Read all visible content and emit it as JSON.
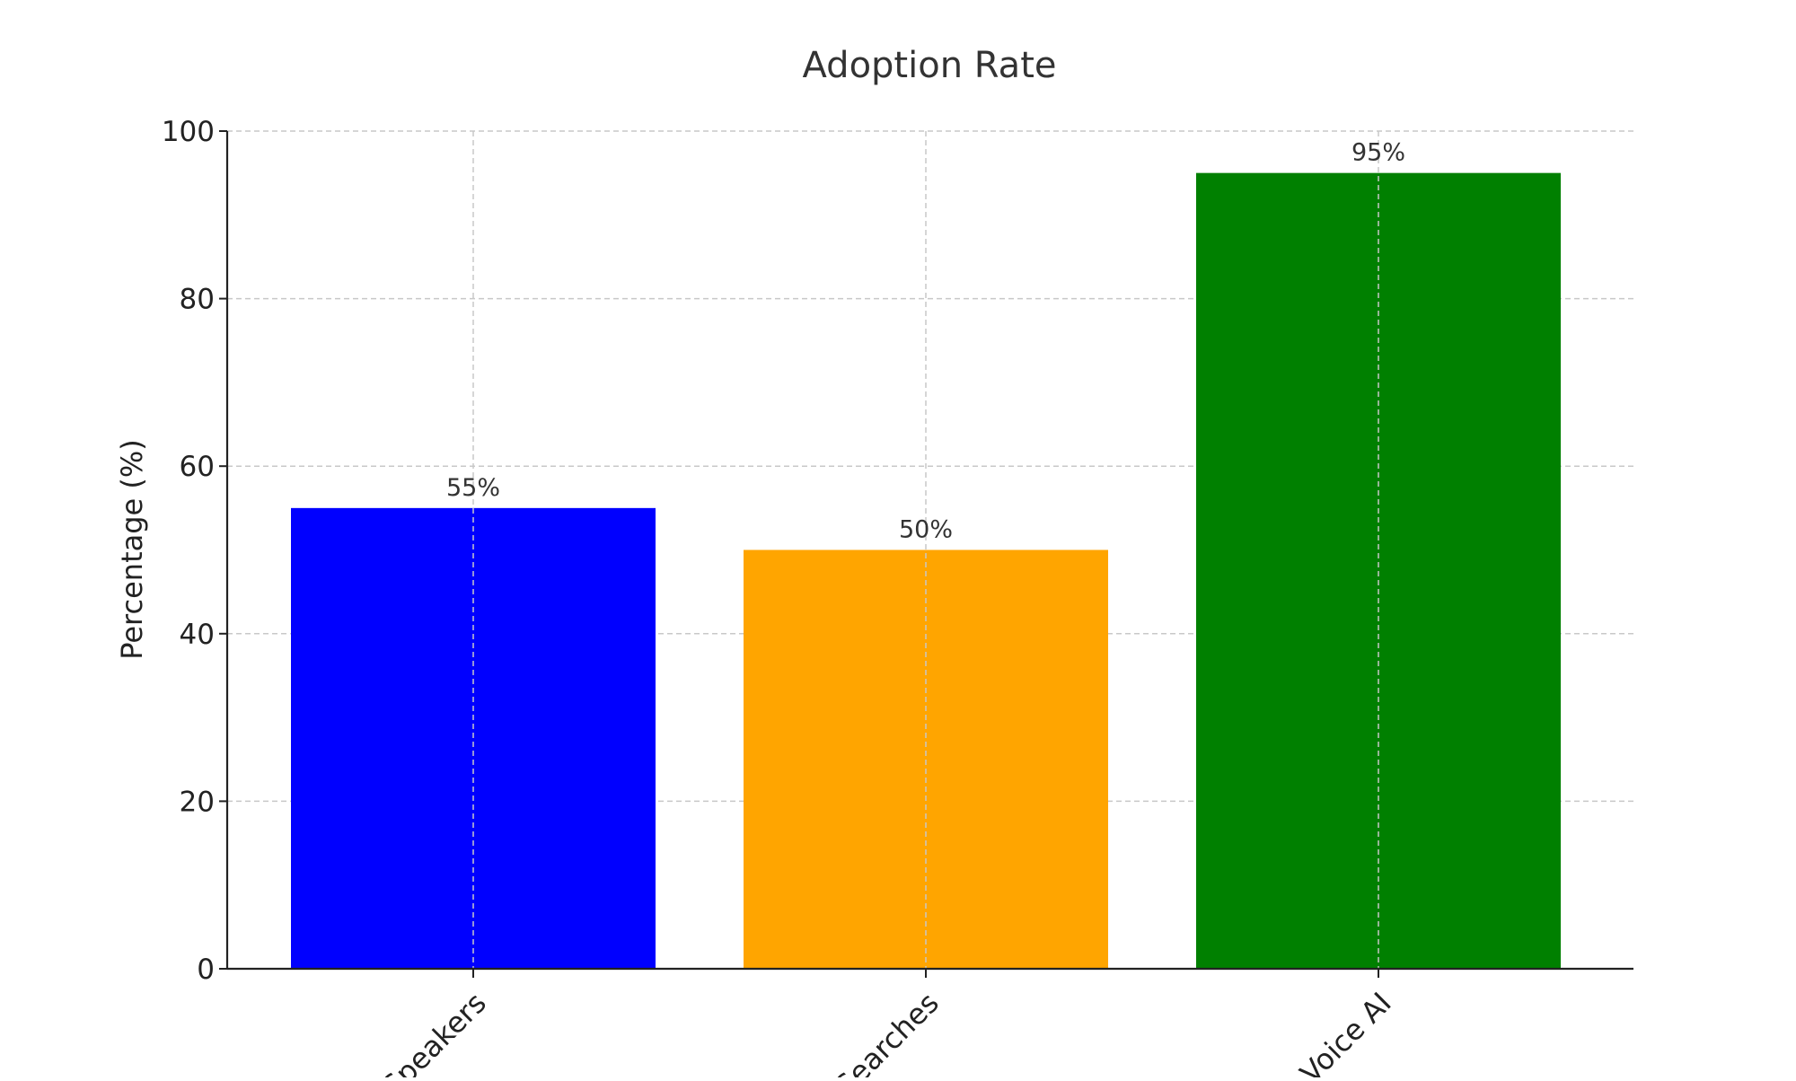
{
  "chart_data": {
    "type": "bar",
    "title": "Adoption Rate",
    "xlabel": "",
    "ylabel": "Percentage (%)",
    "ylim": [
      0,
      100
    ],
    "yticks": [
      0,
      20,
      40,
      60,
      80,
      100
    ],
    "grid": true,
    "categories": [
      "Speakers",
      "Searches",
      ": Voice AI"
    ],
    "values": [
      55,
      50,
      95
    ],
    "data_labels": [
      "55%",
      "50%",
      "95%"
    ],
    "colors": [
      "#0000ff",
      "#ffa500",
      "#008000"
    ]
  }
}
